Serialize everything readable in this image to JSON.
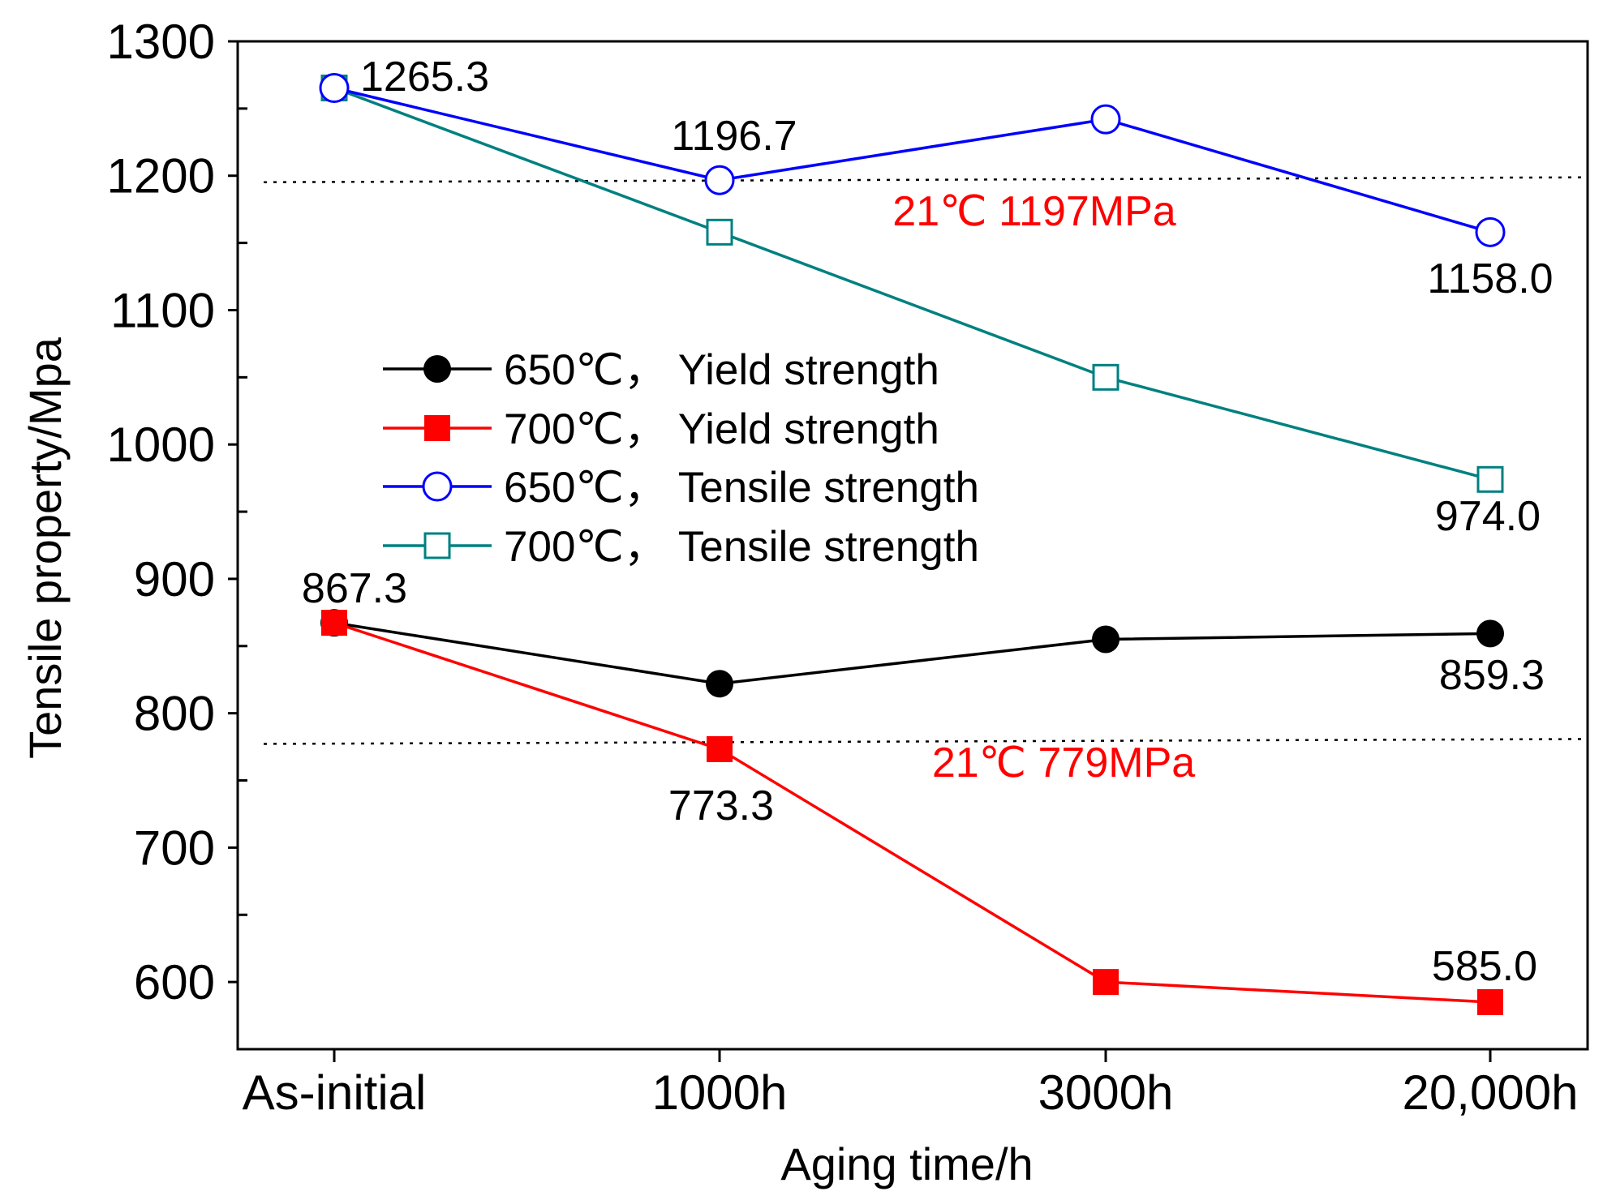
{
  "chart_data": {
    "type": "line",
    "xlabel": "Aging time/h",
    "ylabel": "Tensile property/Mpa",
    "categories": [
      "As-initial",
      "1000h",
      "3000h",
      "20,000h"
    ],
    "ylim": [
      550,
      1300
    ],
    "yticks": [
      600,
      700,
      800,
      900,
      1000,
      1100,
      1200,
      1300
    ],
    "grid": false,
    "legend_position": "center-left",
    "series": [
      {
        "name": "650℃， Yield strength",
        "color": "#000000",
        "marker": "filled-circle",
        "values": [
          867.3,
          822,
          855,
          859.3
        ]
      },
      {
        "name": "700℃， Yield strength",
        "color": "#ff0000",
        "marker": "filled-square",
        "values": [
          867.3,
          773.3,
          600,
          585.0
        ]
      },
      {
        "name": "650℃， Tensile strength",
        "color": "#0000ff",
        "marker": "open-circle",
        "values": [
          1265.3,
          1196.7,
          1242,
          1158.0
        ]
      },
      {
        "name": "700℃， Tensile strength",
        "color": "#008080",
        "marker": "open-square",
        "values": [
          1265.3,
          1158,
          1050,
          974.0
        ]
      }
    ],
    "data_labels": [
      "1265.3",
      "1196.7",
      "1158.0",
      "974.0",
      "867.3",
      "859.3",
      "773.3",
      "585.0"
    ],
    "reference_lines": [
      {
        "value": 1197,
        "label": "21℃  1197MPa",
        "color": "#ff0000"
      },
      {
        "value": 779,
        "label": "21℃  779MPa",
        "color": "#ff0000"
      }
    ]
  }
}
